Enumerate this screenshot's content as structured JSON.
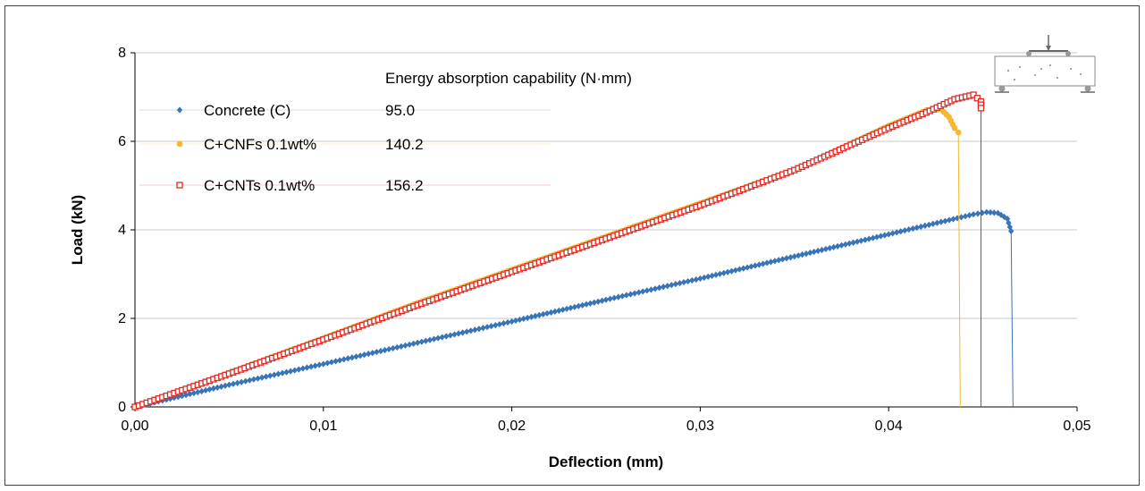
{
  "chart_data": {
    "type": "scatter",
    "xlabel": "Deflection (mm)",
    "ylabel": "Load (kN)",
    "xlim": [
      0,
      0.05
    ],
    "ylim": [
      0,
      8
    ],
    "x_ticks": [
      "0,00",
      "0,01",
      "0,02",
      "0,03",
      "0,04",
      "0,05"
    ],
    "y_ticks": [
      "0",
      "2",
      "4",
      "6",
      "8"
    ],
    "grid": "horizontal",
    "legend_position": "top-left",
    "annotation_header": "Energy absorption capability (N·mm)",
    "series": [
      {
        "name": "Concrete (C)",
        "energy": "95.0",
        "color": "#3a74b8",
        "marker": "diamond",
        "x": [
          0,
          0.005,
          0.01,
          0.015,
          0.02,
          0.025,
          0.03,
          0.035,
          0.04,
          0.043,
          0.0445,
          0.0452,
          0.0458,
          0.0463,
          0.0465
        ],
        "y": [
          0,
          0.5,
          0.97,
          1.45,
          1.93,
          2.42,
          2.9,
          3.4,
          3.9,
          4.2,
          4.35,
          4.4,
          4.38,
          4.25,
          3.97
        ],
        "drop_x": 0.0466
      },
      {
        "name": "C+CNFs 0.1wt%",
        "energy": "140.2",
        "color": "#f5b82e",
        "marker": "circle",
        "x": [
          0,
          0.005,
          0.01,
          0.015,
          0.02,
          0.025,
          0.03,
          0.035,
          0.04,
          0.042,
          0.0428,
          0.0432,
          0.0435,
          0.0437
        ],
        "y": [
          0,
          0.77,
          1.55,
          2.35,
          3.1,
          3.85,
          4.6,
          5.35,
          6.35,
          6.7,
          6.72,
          6.55,
          6.3,
          6.2
        ],
        "drop_x": 0.0438
      },
      {
        "name": "C+CNTs 0.1wt%",
        "energy": "156.2",
        "color": "#e02a24",
        "marker": "square",
        "x": [
          0,
          0.005,
          0.01,
          0.015,
          0.02,
          0.025,
          0.03,
          0.035,
          0.04,
          0.042,
          0.0435,
          0.0445,
          0.0449,
          0.0449
        ],
        "y": [
          0,
          0.75,
          1.52,
          2.3,
          3.05,
          3.8,
          4.55,
          5.35,
          6.3,
          6.65,
          6.95,
          7.05,
          6.9,
          6.75
        ],
        "drop_x": 0.0449
      }
    ]
  }
}
